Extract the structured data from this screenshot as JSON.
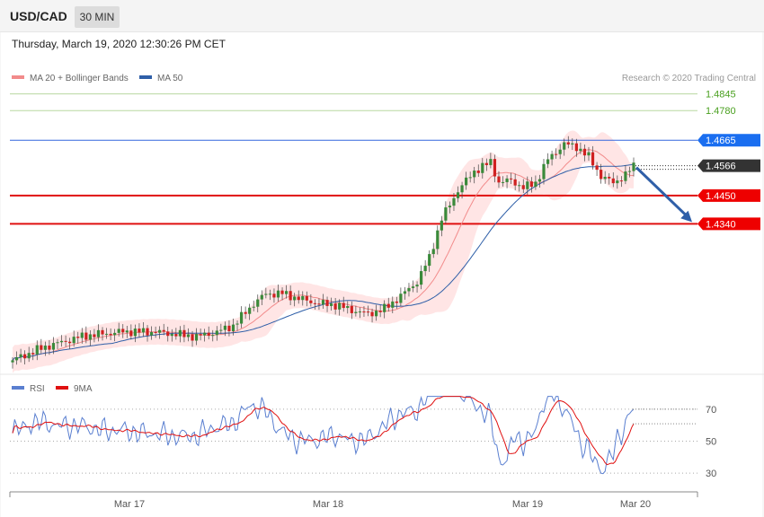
{
  "header": {
    "symbol": "USD/CAD",
    "timeframe": "30 MIN"
  },
  "datetime": "Thursday, March 19, 2020 12:30:26 PM CET",
  "legend": {
    "ma20": {
      "label": "MA 20 + Bollinger Bands",
      "color": "#f28b8b"
    },
    "ma50": {
      "label": "MA 50",
      "color": "#2f5fa8"
    }
  },
  "credit": "Research © 2020 Trading Central",
  "colors": {
    "up": "#3a8a3a",
    "down": "#d02020",
    "band": "#ffe0e0",
    "arrow": "#2f5fa8"
  },
  "chart_data": [
    {
      "type": "candlestick",
      "ylim": [
        1.378,
        1.4875
      ],
      "x_ticks": [
        "Mar 17",
        "Mar 18",
        "Mar 19",
        "Mar 20"
      ],
      "levels": [
        {
          "value": 1.4845,
          "label": "1.4845",
          "kind": "thin-green"
        },
        {
          "value": 1.478,
          "label": "1.4780",
          "kind": "thin-green"
        },
        {
          "value": 1.4665,
          "label": "1.4665",
          "kind": "blue"
        },
        {
          "value": 1.4566,
          "label": "1.4566",
          "kind": "current"
        },
        {
          "value": 1.445,
          "label": "1.4450",
          "kind": "red"
        },
        {
          "value": 1.434,
          "label": "1.4340",
          "kind": "red"
        }
      ],
      "forecast_arrow": {
        "from": 1.4566,
        "to": 1.434
      }
    },
    {
      "type": "line",
      "series": [
        {
          "name": "RSI",
          "color": "#5a7fd0"
        },
        {
          "name": "9MA",
          "color": "#e01010"
        }
      ],
      "ylim": [
        20,
        80
      ],
      "levels": [
        {
          "value": 70,
          "label": "70"
        },
        {
          "value": 50,
          "label": "50"
        },
        {
          "value": 30,
          "label": "30"
        }
      ]
    }
  ]
}
